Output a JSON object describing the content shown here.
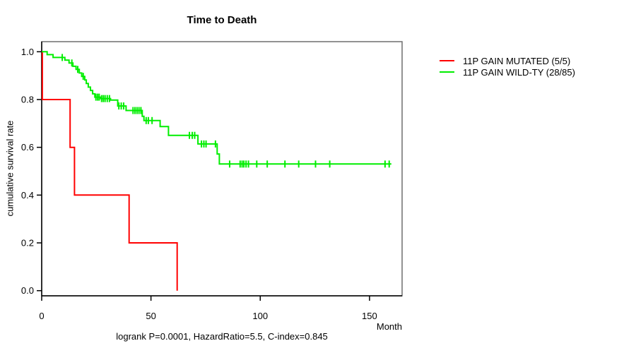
{
  "header": {
    "title": "Time to Death"
  },
  "footer": {
    "caption": "logrank P=0.0001, HazardRatio=5.5, C-index=0.845"
  },
  "chart_data": {
    "type": "line",
    "subtype": "kaplan-meier-step",
    "title": "Time to Death",
    "xlabel": "Month",
    "ylabel": "cumulative survival rate",
    "xlim": [
      0,
      165
    ],
    "ylim": [
      0,
      1
    ],
    "x_ticks": [
      0,
      50,
      100,
      150
    ],
    "y_tick_labels": [
      "0.0",
      "0.2",
      "0.4",
      "0.6",
      "0.8",
      "1.0"
    ],
    "grid": false,
    "legend_position": "right-outside",
    "frame_color": "#6e6e6e",
    "axis_color": "#000000",
    "series": [
      {
        "name": "11P GAIN MUTATED (5/5)",
        "color": "#ff0000",
        "steps": [
          [
            0,
            1.0
          ],
          [
            0.3,
            0.8
          ],
          [
            13,
            0.6
          ],
          [
            15,
            0.4
          ],
          [
            40,
            0.2
          ],
          [
            62,
            0.0
          ]
        ],
        "end_time": 62,
        "censor_times": []
      },
      {
        "name": "11P GAIN WILD-TY (28/85)",
        "color": "#00ee00",
        "steps": [
          [
            0,
            1.0
          ],
          [
            2.5,
            0.988
          ],
          [
            5.2,
            0.976
          ],
          [
            10.6,
            0.965
          ],
          [
            12.5,
            0.953
          ],
          [
            14.3,
            0.939
          ],
          [
            15.7,
            0.926
          ],
          [
            17.2,
            0.911
          ],
          [
            18.3,
            0.897
          ],
          [
            19.7,
            0.882
          ],
          [
            20.4,
            0.867
          ],
          [
            21.3,
            0.852
          ],
          [
            22.3,
            0.838
          ],
          [
            23.3,
            0.824
          ],
          [
            24.3,
            0.81
          ],
          [
            27.0,
            0.804
          ],
          [
            31.5,
            0.798
          ],
          [
            34.8,
            0.773
          ],
          [
            38.6,
            0.754
          ],
          [
            46.0,
            0.73
          ],
          [
            46.8,
            0.712
          ],
          [
            54.2,
            0.687
          ],
          [
            58.0,
            0.65
          ],
          [
            71.5,
            0.614
          ],
          [
            80.3,
            0.572
          ],
          [
            81.3,
            0.53
          ]
        ],
        "end_time": 160,
        "censor_times": [
          9.4,
          13.8,
          16.5,
          19.0,
          24.8,
          25.6,
          26.3,
          27.4,
          28.2,
          29.0,
          30.0,
          31.0,
          35.3,
          36.4,
          37.5,
          41.8,
          42.7,
          43.6,
          44.5,
          45.4,
          47.8,
          48.8,
          50.5,
          67.6,
          68.9,
          70.0,
          73.1,
          74.2,
          75.2,
          79.5,
          86.0,
          90.8,
          91.7,
          92.5,
          93.5,
          94.6,
          98.4,
          103.2,
          111.3,
          117.6,
          125.3,
          131.8,
          157.1,
          159.0
        ]
      }
    ]
  }
}
